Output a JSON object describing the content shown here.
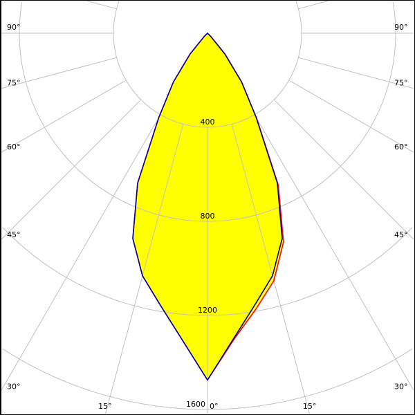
{
  "chart_data": {
    "type": "polar-line",
    "angle_unit": "degrees",
    "radial_unit": "cd",
    "radial_ticks": [
      400,
      800,
      1200,
      1600
    ],
    "radial_tick_labels": [
      "400",
      "800",
      "1200",
      "1600"
    ],
    "rlim": [
      0,
      1600
    ],
    "angle_ticks_left": [
      "90°",
      "75°",
      "60°",
      "45°",
      "30°",
      "15°",
      "0°"
    ],
    "angle_ticks_right": [
      "90°",
      "75°",
      "60°",
      "45°",
      "30°",
      "15°"
    ],
    "angle_tick_values": [
      90,
      75,
      60,
      45,
      30,
      15,
      0
    ],
    "grid": true,
    "fill_color": "#ffff00",
    "grid_color": "#c0c0c0",
    "angles": [
      0,
      5,
      10,
      15,
      20,
      25,
      30,
      35,
      40,
      45,
      50
    ],
    "series": [
      {
        "color": "#ff0000",
        "left": [
          1475,
          1300,
          1170,
          1068,
          929,
          703,
          414,
          253,
          115,
          20,
          0
        ],
        "right": [
          1475,
          1305,
          1190,
          1090,
          945,
          712,
          418,
          253,
          115,
          20,
          0
        ]
      },
      {
        "color": "#0000aa",
        "left": [
          1475,
          1300,
          1170,
          1068,
          929,
          703,
          414,
          253,
          115,
          20,
          0
        ],
        "right": [
          1475,
          1300,
          1170,
          1068,
          929,
          703,
          414,
          253,
          115,
          20,
          0
        ]
      }
    ]
  }
}
